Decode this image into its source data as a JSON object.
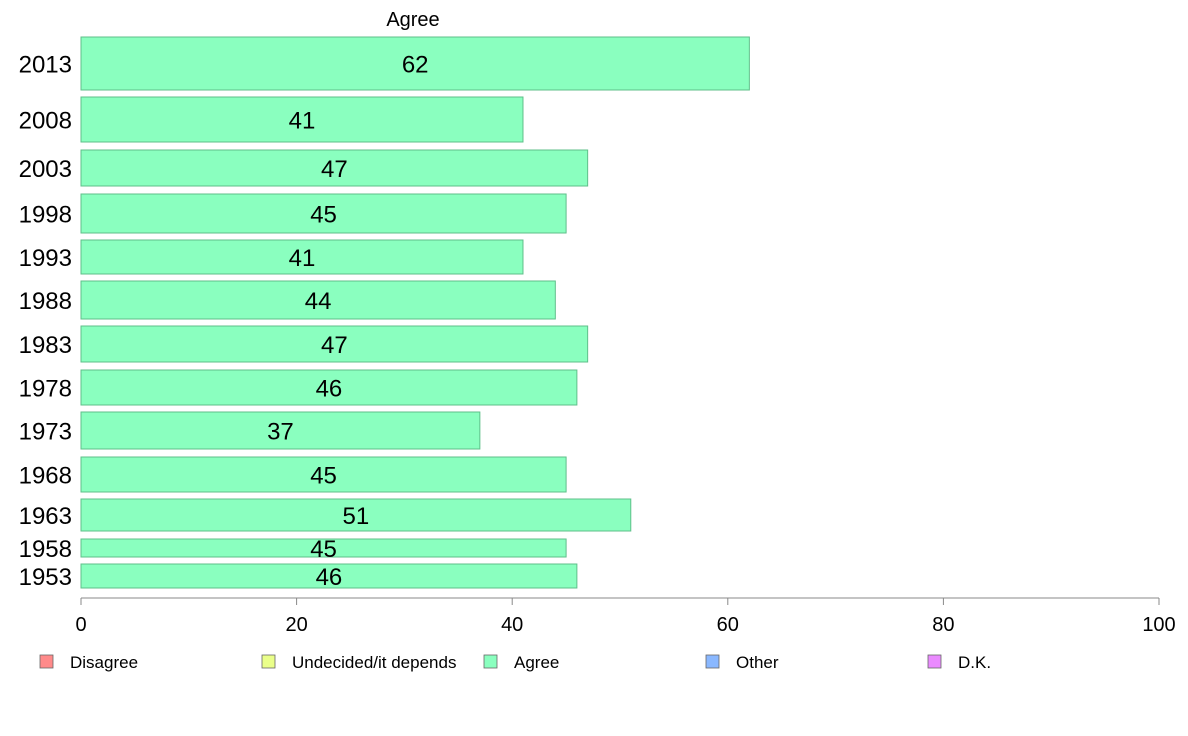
{
  "chart_data": {
    "type": "bar",
    "orientation": "horizontal",
    "title": "Agree",
    "categories": [
      "2013",
      "2008",
      "2003",
      "1998",
      "1993",
      "1988",
      "1983",
      "1978",
      "1973",
      "1968",
      "1963",
      "1958",
      "1953"
    ],
    "values": [
      62,
      41,
      47,
      45,
      41,
      44,
      47,
      46,
      37,
      45,
      51,
      45,
      46
    ],
    "xlim": [
      0,
      100
    ],
    "xticks": [
      0,
      20,
      40,
      60,
      80,
      100
    ],
    "grid": false,
    "bar_color": "#8affbf",
    "bar_stroke": "#5fbf8a",
    "legend": {
      "placement": "bottom",
      "items": [
        {
          "label": "Disagree",
          "color": "#ff8a8a"
        },
        {
          "label": "Undecided/it depends",
          "color": "#eaff8a"
        },
        {
          "label": "Agree",
          "color": "#8affbf"
        },
        {
          "label": "Other",
          "color": "#8ab8ff"
        },
        {
          "label": "D.K.",
          "color": "#ea8aff"
        }
      ]
    }
  }
}
